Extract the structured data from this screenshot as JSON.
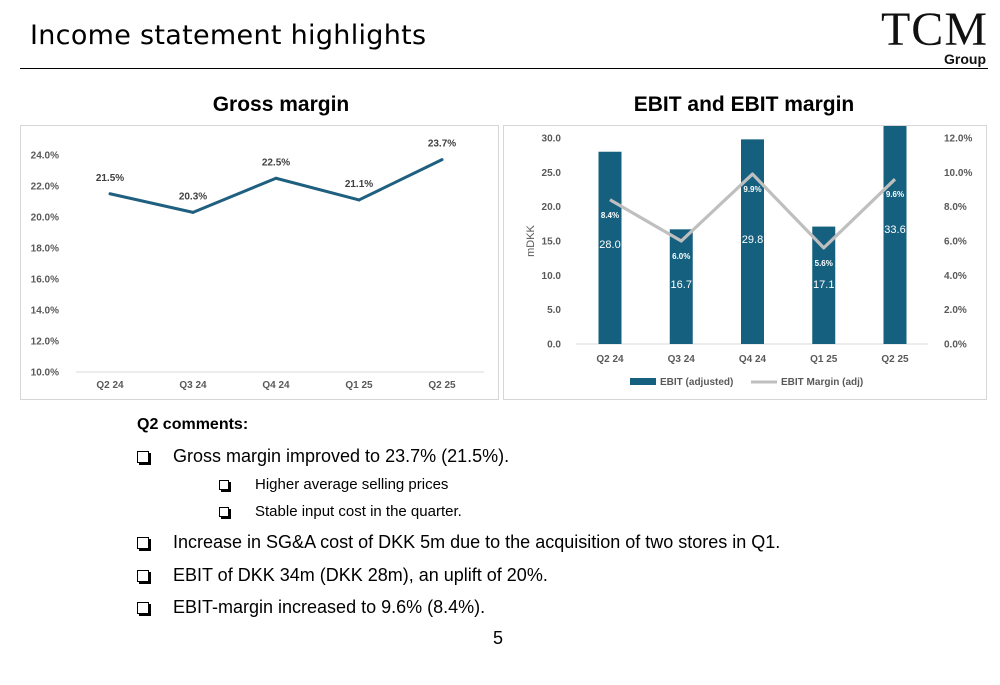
{
  "slide": {
    "title": "Income statement highlights",
    "page_number": "5"
  },
  "logo": {
    "main": "TCM",
    "sub": "Group"
  },
  "comments": {
    "title": "Q2 comments:",
    "bullets": [
      "Gross margin improved to 23.7% (21.5%).",
      "Higher average selling prices",
      "Stable input cost in the quarter.",
      "Increase in SG&A cost of DKK 5m due to the acquisition of two stores in Q1.",
      "EBIT of DKK 34m (DKK 28m), an uplift of 20%.",
      "EBIT-margin increased to 9.6% (8.4%)."
    ]
  },
  "chart_data": [
    {
      "type": "line",
      "title": "Gross margin",
      "categories": [
        "Q2 24",
        "Q3 24",
        "Q4 24",
        "Q1 25",
        "Q2 25"
      ],
      "series": [
        {
          "values": [
            21.5,
            20.3,
            22.5,
            21.1,
            23.7
          ],
          "color": "#1f5f7f"
        }
      ],
      "data_labels": [
        "21.5%",
        "20.3%",
        "22.5%",
        "21.1%",
        "23.7%"
      ],
      "ylim": [
        10,
        24
      ],
      "y_ticks": [
        "10.0%",
        "12.0%",
        "14.0%",
        "16.0%",
        "18.0%",
        "20.0%",
        "22.0%",
        "24.0%"
      ],
      "grid": false
    },
    {
      "type": "bar",
      "title": "EBIT and EBIT margin",
      "categories": [
        "Q2 24",
        "Q3 24",
        "Q4 24",
        "Q1 25",
        "Q2 25"
      ],
      "ylabel": "mDKK",
      "ylim": [
        0,
        30
      ],
      "y2lim": [
        0,
        12
      ],
      "y_ticks": [
        "0.0",
        "5.0",
        "10.0",
        "15.0",
        "20.0",
        "25.0",
        "30.0"
      ],
      "y2_ticks": [
        "0.0%",
        "2.0%",
        "4.0%",
        "6.0%",
        "8.0%",
        "10.0%",
        "12.0%"
      ],
      "series": [
        {
          "name": "EBIT (adjusted)",
          "type": "bar",
          "axis": "left",
          "values": [
            28.0,
            16.7,
            29.8,
            17.1,
            33.6
          ],
          "data_labels": [
            "28.0",
            "16.7",
            "29.8",
            "17.1",
            "33.6"
          ],
          "color": "#16607f"
        },
        {
          "name": "EBIT Margin (adj)",
          "type": "line",
          "axis": "right",
          "values": [
            8.4,
            6.0,
            9.9,
            5.6,
            9.6
          ],
          "data_labels": [
            "8.4%",
            "6.0%",
            "9.9%",
            "5.6%",
            "9.6%"
          ],
          "color": "#bfbfbf"
        }
      ],
      "legend": "bottom",
      "grid": false
    }
  ]
}
